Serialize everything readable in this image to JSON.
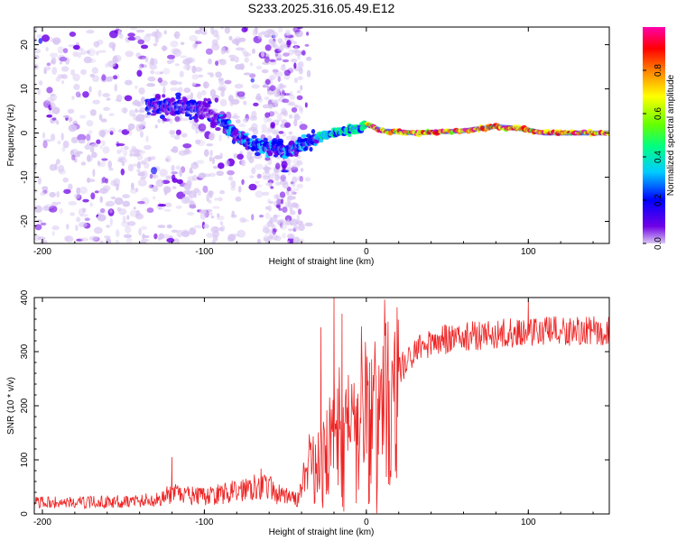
{
  "figure_title": "S233.2025.316.05.49.E12",
  "chart_data": [
    {
      "type": "heatmap",
      "title": "S233.2025.316.05.49.E12",
      "xlabel": "Height of straight line (km)",
      "ylabel": "Frequency (Hz)",
      "xlim": [
        -205,
        150
      ],
      "ylim": [
        -25,
        24
      ],
      "xticks": [
        -200,
        -100,
        0,
        100
      ],
      "yticks": [
        -20,
        -10,
        0,
        10,
        20
      ],
      "colorbar": {
        "label": "Normalized spectral amplitude",
        "range": [
          0,
          1
        ],
        "ticks": [
          0,
          0.2,
          0.4,
          0.6,
          0.8
        ],
        "tick_labels": [
          "0.0",
          "0.2",
          "0.4",
          "0.6",
          "0.8"
        ],
        "colormap": [
          "#d8c6f2",
          "#6f00e6",
          "#0000ff",
          "#00ccff",
          "#00ff80",
          "#66ff00",
          "#ffff00",
          "#ff8000",
          "#ff0000",
          "#ff00aa"
        ]
      },
      "ridge": [
        {
          "x": -130,
          "y": 6
        },
        {
          "x": -115,
          "y": 6
        },
        {
          "x": -100,
          "y": 5
        },
        {
          "x": -90,
          "y": 3
        },
        {
          "x": -80,
          "y": -1
        },
        {
          "x": -65,
          "y": -3
        },
        {
          "x": -50,
          "y": -4
        },
        {
          "x": -40,
          "y": -3
        },
        {
          "x": -30,
          "y": -1
        },
        {
          "x": -20,
          "y": 0
        },
        {
          "x": -5,
          "y": 1
        },
        {
          "x": 0,
          "y": 2
        },
        {
          "x": 10,
          "y": 0.5
        },
        {
          "x": 30,
          "y": 0
        },
        {
          "x": 60,
          "y": 0.5
        },
        {
          "x": 80,
          "y": 1.5
        },
        {
          "x": 95,
          "y": 1
        },
        {
          "x": 110,
          "y": 0
        },
        {
          "x": 150,
          "y": 0
        }
      ]
    },
    {
      "type": "line",
      "title": "",
      "xlabel": "Height of straight line (km)",
      "ylabel": "SNR (10 * v/v)",
      "xlim": [
        -205,
        150
      ],
      "ylim": [
        0,
        400
      ],
      "xticks": [
        -200,
        -100,
        0,
        100
      ],
      "yticks": [
        0,
        100,
        200,
        300,
        400
      ],
      "color": "#ee2222",
      "envelope": [
        {
          "x": -205,
          "y": 20
        },
        {
          "x": -180,
          "y": 20
        },
        {
          "x": -150,
          "y": 22
        },
        {
          "x": -130,
          "y": 25
        },
        {
          "x": -120,
          "y": 35
        },
        {
          "x": -100,
          "y": 30
        },
        {
          "x": -80,
          "y": 40
        },
        {
          "x": -65,
          "y": 55
        },
        {
          "x": -55,
          "y": 35
        },
        {
          "x": -42,
          "y": 25
        },
        {
          "x": -38,
          "y": 70
        },
        {
          "x": -30,
          "y": 110
        },
        {
          "x": -25,
          "y": 130
        },
        {
          "x": -20,
          "y": 140
        },
        {
          "x": -10,
          "y": 170
        },
        {
          "x": 0,
          "y": 190
        },
        {
          "x": 10,
          "y": 210
        },
        {
          "x": 20,
          "y": 260
        },
        {
          "x": 30,
          "y": 300
        },
        {
          "x": 40,
          "y": 315
        },
        {
          "x": 60,
          "y": 325
        },
        {
          "x": 80,
          "y": 330
        },
        {
          "x": 100,
          "y": 335
        },
        {
          "x": 120,
          "y": 335
        },
        {
          "x": 150,
          "y": 335
        }
      ],
      "spikes": [
        {
          "x": -120,
          "y": 105
        },
        {
          "x": -28,
          "y": 345
        },
        {
          "x": -20,
          "y": 400
        },
        {
          "x": -15,
          "y": 370
        },
        {
          "x": 2,
          "y": 280
        },
        {
          "x": 100,
          "y": 395
        }
      ]
    }
  ]
}
